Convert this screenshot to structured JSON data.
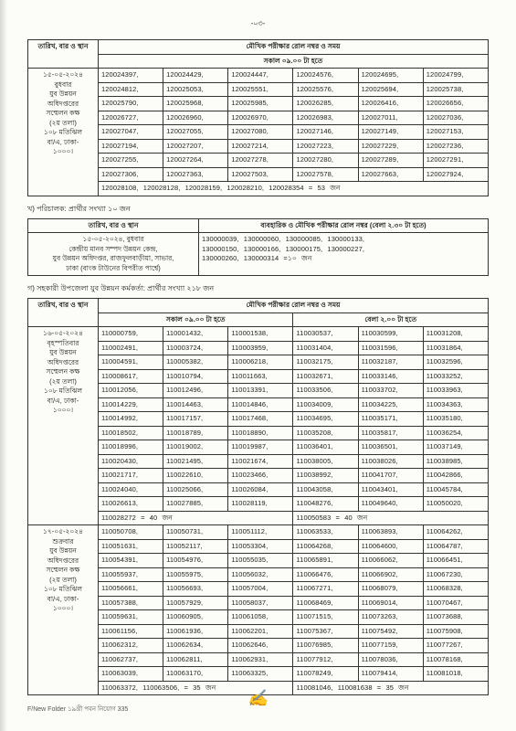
{
  "pageNum": "-০৩-",
  "table1": {
    "header_col1": "তারিখ, বার ও\nস্থান",
    "header_col2": "মৌখিক পরীক্ষার রোল নম্বর ও সময়",
    "header_sub": "সকাল ০৯.০০ টা হতে",
    "left": "১৫-০৫-২০২৪\nবুধবার\nযুব উন্নয়ন\nঅধিদপ্তরের\nসম্মেলন কক্ষ\n(২য় তলা)\n১০৮ মতিঝিল\nবা/এ, ঢাকা-\n১০০০।",
    "rows": [
      [
        "120024397,",
        "120024429,",
        "120024447,",
        "120024576,",
        "120024695,",
        "120024799,"
      ],
      [
        "120024812,",
        "120025053,",
        "120025551,",
        "120025576,",
        "120025694,",
        "120025738,"
      ],
      [
        "120025790,",
        "120025968,",
        "120025985,",
        "120026285,",
        "120026416,",
        "120026656,"
      ],
      [
        "120026727,",
        "120026960,",
        "120026970,",
        "120026983,",
        "120027011,",
        "120027036,"
      ],
      [
        "120027047,",
        "120027055,",
        "120027080,",
        "120027146,",
        "120027149,",
        "120027153,"
      ],
      [
        "120027194,",
        "120027207,",
        "120027214,",
        "120027223,",
        "120027229,",
        "120027236,"
      ],
      [
        "120027255,",
        "120027264,",
        "120027278,",
        "120027280,",
        "120027289,",
        "120027291,"
      ],
      [
        "120027306,",
        "120027363,",
        "120027503,",
        "120027578,",
        "120027663,",
        "120027924,"
      ]
    ],
    "lastrow": "120028108, 120028128, 120028159, 120028210, 120028354 = 53 জন"
  },
  "section2_title": "খ) পরিচালক: প্রার্থীর সংখ্যা ১০ জন",
  "table2": {
    "header_col1": "তারিখ, বার ও স্থান",
    "header_col2": "ব্যবহারিক ও মৌখিক পরীক্ষার রোল নম্বর (বেলা ২.৩০ টা হতে)",
    "left": "১৫-০৫-২০২৪, বুধবার\nকেন্দ্রীয় মানব সম্পদ উন্নয়ন কেন্দ্র,\nযুব উন্নয়ন অধিদপ্তর, রাজফুলবাড়ীয়া, সাভার,\nঢাকা (বাংক টাউনের বিপরীত পার্শ্বে)",
    "rows": [
      "130000039,   130000060,   130000085,   130000133,",
      "130000150,   130000166,   130000175,   130000227,",
      "130000260, 130000314 =১০ জন"
    ]
  },
  "section3_title": "গ) সহকারী উপজেলা যুব উন্নয়ন কর্মকর্তা: প্রার্থীর সংখ্যা ২১৮ জন",
  "table3": {
    "header_col1": "তারিখ, বার ও\nস্থান",
    "header_col2": "মৌখিক পরীক্ষার রোল নম্বর ও সময়",
    "header_sub1": "সকাল ০৯.০০ টা হতে",
    "header_sub2": "বেলা ২.০০ টা হতে",
    "blocks": [
      {
        "left": "১৬-০৫-২০২৪\nবৃহস্পতিবার\nযুব উন্নয়ন\nঅধিদপ্তরের\nসম্মেলন কক্ষ\n(২য় তলা)\n১০৮ মতিঝিল\nবা/এ, ঢাকা-\n১০০০।",
        "rows": [
          [
            "110000759,",
            "110001432,",
            "110001538,",
            "110030537,",
            "110030599,",
            "110031208,"
          ],
          [
            "110002491,",
            "110003724,",
            "110003959,",
            "110031404,",
            "110031596,",
            "110031864,"
          ],
          [
            "110004591,",
            "110005382,",
            "110006218,",
            "110032175,",
            "110032187,",
            "110032596,"
          ],
          [
            "110008617,",
            "110010794,",
            "110011663,",
            "110032671,",
            "110033146,",
            "110033252,"
          ],
          [
            "110012056,",
            "110012496,",
            "110013391,",
            "110033506,",
            "110033702,",
            "110033963,"
          ],
          [
            "110014229,",
            "110014463,",
            "110014846,",
            "110034009,",
            "110034225,",
            "110034363,"
          ],
          [
            "110014992,",
            "110017157,",
            "110017468,",
            "110034695,",
            "110035171,",
            "110035180,"
          ],
          [
            "110018502,",
            "110018789,",
            "110018890,",
            "110035208,",
            "110035817,",
            "110036254,"
          ],
          [
            "110018996,",
            "110019002,",
            "110019987,",
            "110036401,",
            "110036501,",
            "110037149,"
          ],
          [
            "110020430,",
            "110021495,",
            "110021674,",
            "110038005,",
            "110038026,",
            "110038985,"
          ],
          [
            "110021717,",
            "110022610,",
            "110023466,",
            "110038992,",
            "110041707,",
            "110042866,"
          ],
          [
            "110024040,",
            "110025066,",
            "110026084,",
            "110043058,",
            "110043401,",
            "110045784,"
          ],
          [
            "110026613,",
            "110027885,",
            "110028119,",
            "110048276,",
            "110049640,",
            "110050020,"
          ]
        ],
        "last": [
          "110028272 = 40 জন",
          "110050583 = 40 জন"
        ]
      },
      {
        "left": "১৭-০৫-২০২৪\nশুক্রবার\nযুব উন্নয়ন\nঅধিদপ্তরের\nসম্মেলন কক্ষ\n(২য় তলা)\n১০৮ মতিঝিল\nবা/এ, ঢাকা-\n১০০০।",
        "rows": [
          [
            "110050708,",
            "110050731,",
            "110051112,",
            "110063533,",
            "110063893,",
            "110064262,"
          ],
          [
            "110051631,",
            "110052117,",
            "110053304,",
            "110064268,",
            "110064600,",
            "110064787,"
          ],
          [
            "110054391,",
            "110054976,",
            "110055035,",
            "110065891,",
            "110066062,",
            "110066451,"
          ],
          [
            "110055937,",
            "110055975,",
            "110056032,",
            "110066476,",
            "110066902,",
            "110067230,"
          ],
          [
            "110056661,",
            "110056693,",
            "110057004,",
            "110067271,",
            "110068079,",
            "110068328,"
          ],
          [
            "110057388,",
            "110057929,",
            "110058037,",
            "110068469,",
            "110069014,",
            "110070467,"
          ],
          [
            "110059631,",
            "110060905,",
            "110061058,",
            "110071515,",
            "110073263,",
            "110073688,"
          ],
          [
            "110061156,",
            "110061936,",
            "110062201,",
            "110075367,",
            "110075492,",
            "110075908,"
          ],
          [
            "110062312,",
            "110062634,",
            "110062646,",
            "110076985,",
            "110077159,",
            "110077267,"
          ],
          [
            "110062737,",
            "110062811,",
            "110062931,",
            "110077912,",
            "110078036,",
            "110078168,"
          ],
          [
            "110063039,",
            "110063170,",
            "110063325,",
            "110078249,",
            "110079414,",
            "110081018,"
          ]
        ],
        "last": [
          "110063372, 110063506, = 35 জন",
          "110081046, 110081638 = 35 জন"
        ]
      }
    ]
  },
  "footer": "F/New Folder ১৯খ্রী পবন নিয়োগ 335",
  "signature": "✍"
}
